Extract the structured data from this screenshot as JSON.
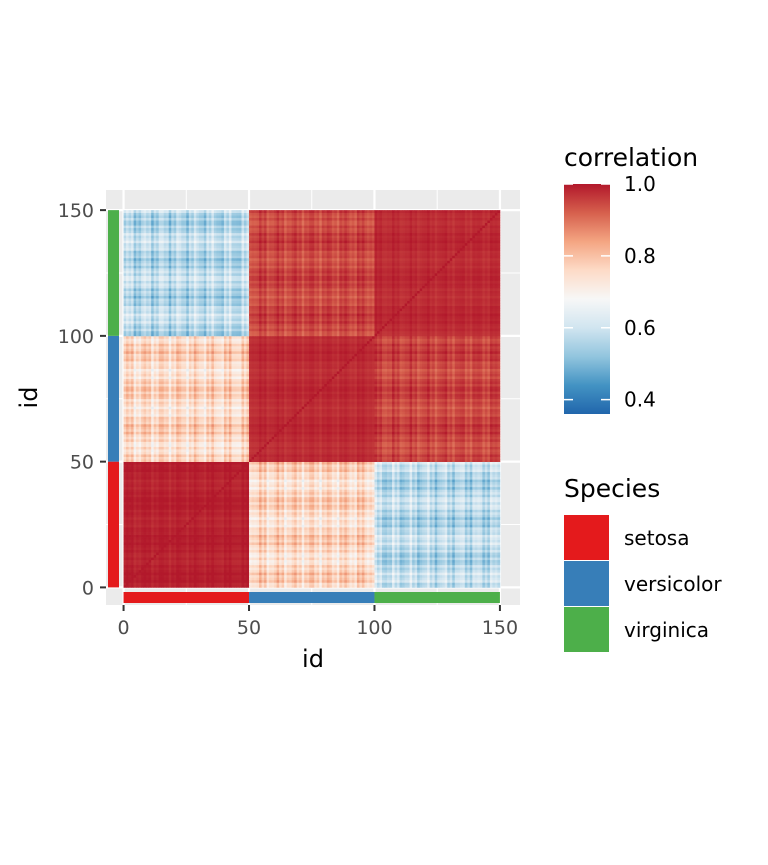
{
  "chart_data": {
    "type": "heatmap",
    "title": "",
    "xlabel": "id",
    "ylabel": "id",
    "xlim": [
      -7,
      158
    ],
    "ylim": [
      -7,
      158
    ],
    "x_ticks": [
      0,
      50,
      100,
      150
    ],
    "y_ticks": [
      0,
      50,
      100,
      150
    ],
    "grid": true,
    "block_size": 50,
    "species_order": [
      "setosa",
      "versicolor",
      "virginica"
    ],
    "approx_block_correlation": [
      [
        0.99,
        0.76,
        0.57
      ],
      [
        0.76,
        0.98,
        0.95
      ],
      [
        0.57,
        0.95,
        0.98
      ]
    ],
    "color_scale": {
      "title": "correlation",
      "min": 0.36,
      "max": 1.0,
      "tick_values": [
        0.4,
        0.6,
        0.8,
        1.0
      ],
      "tick_labels": [
        "0.4",
        "0.6",
        "0.8",
        "1.0"
      ],
      "stops": [
        "#2166ac",
        "#4393c3",
        "#92c5de",
        "#d1e5f0",
        "#f7f7f7",
        "#fddbc7",
        "#f4a582",
        "#d6604d",
        "#b2182b"
      ]
    },
    "species_legend": {
      "title": "Species",
      "entries": [
        {
          "label": "setosa",
          "color": "#e41a1c"
        },
        {
          "label": "versicolor",
          "color": "#377eb8"
        },
        {
          "label": "virginica",
          "color": "#4daf4a"
        }
      ]
    },
    "legend_position": "right"
  }
}
